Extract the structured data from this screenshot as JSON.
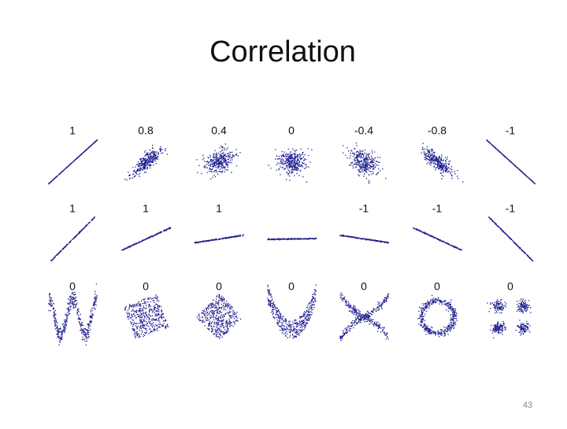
{
  "title": "Correlation",
  "rows": [
    [
      1,
      0.8,
      0.4,
      0,
      -0.4,
      -0.8,
      -1
    ],
    [
      1,
      1,
      1,
      null,
      -1,
      -1,
      -1
    ],
    [
      0,
      0,
      0,
      0,
      0,
      0,
      0
    ]
  ],
  "page_number": 43
}
